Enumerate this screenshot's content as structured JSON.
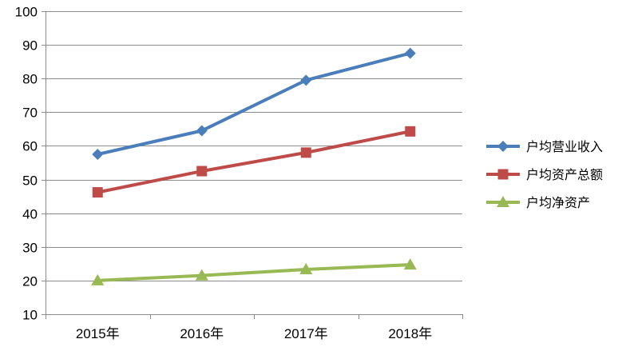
{
  "chart_data": {
    "type": "line",
    "title": "",
    "xlabel": "",
    "ylabel": "",
    "categories": [
      "2015年",
      "2016年",
      "2017年",
      "2018年"
    ],
    "ylim": [
      10,
      100
    ],
    "yticks": [
      10,
      20,
      30,
      40,
      50,
      60,
      70,
      80,
      90,
      100
    ],
    "grid": true,
    "legend_position": "right",
    "series": [
      {
        "name": "户均营业收入",
        "values": [
          57.5,
          64.5,
          79.5,
          87.5
        ],
        "color": "#4a7ebb",
        "marker": "diamond"
      },
      {
        "name": "户均资产总额",
        "values": [
          46.2,
          52.5,
          58.0,
          64.3
        ],
        "color": "#be4b48",
        "marker": "square"
      },
      {
        "name": "户均净资产",
        "values": [
          20.0,
          21.5,
          23.3,
          24.7
        ],
        "color": "#98b954",
        "marker": "triangle"
      }
    ]
  }
}
